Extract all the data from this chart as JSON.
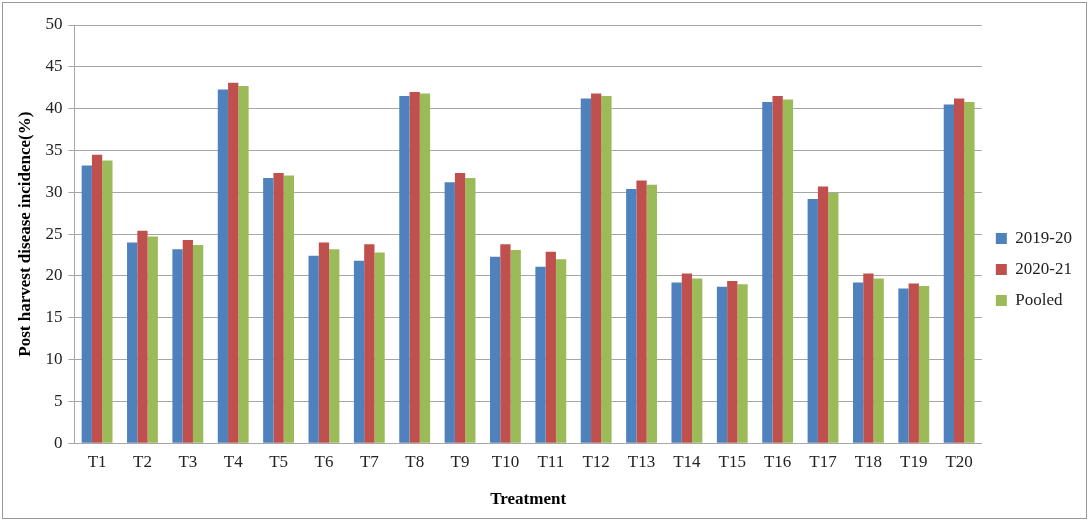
{
  "chart_data": {
    "type": "bar",
    "xlabel": "Treatment",
    "ylabel": "Post harvest disease incidence(%)",
    "categories": [
      "T1",
      "T2",
      "T3",
      "T4",
      "T5",
      "T6",
      "T7",
      "T8",
      "T9",
      "T10",
      "T11",
      "T12",
      "T13",
      "T14",
      "T15",
      "T16",
      "T17",
      "T18",
      "T19",
      "T20"
    ],
    "series": [
      {
        "name": "2019-20",
        "color": "#4f81bd",
        "values": [
          33.2,
          24.0,
          23.2,
          42.3,
          31.7,
          22.4,
          21.8,
          41.5,
          31.2,
          22.3,
          21.1,
          41.2,
          30.4,
          19.2,
          18.7,
          40.8,
          29.2,
          19.2,
          18.5,
          40.5
        ]
      },
      {
        "name": "2020-21",
        "color": "#c0504d",
        "values": [
          34.5,
          25.4,
          24.3,
          43.1,
          32.3,
          24.0,
          23.8,
          42.0,
          32.3,
          23.8,
          22.9,
          41.8,
          31.4,
          20.3,
          19.4,
          41.5,
          30.7,
          20.3,
          19.1,
          41.2
        ]
      },
      {
        "name": "Pooled",
        "color": "#9bbb59",
        "values": [
          33.8,
          24.7,
          23.7,
          42.7,
          32.0,
          23.2,
          22.8,
          41.8,
          31.7,
          23.1,
          22.0,
          41.5,
          30.9,
          19.7,
          19.0,
          41.1,
          29.9,
          19.7,
          18.8,
          40.8
        ]
      }
    ],
    "ylim": [
      0,
      50
    ],
    "yticks": [
      0,
      5,
      10,
      15,
      20,
      25,
      30,
      35,
      40,
      45,
      50
    ],
    "grid": "y",
    "legend": "right"
  }
}
